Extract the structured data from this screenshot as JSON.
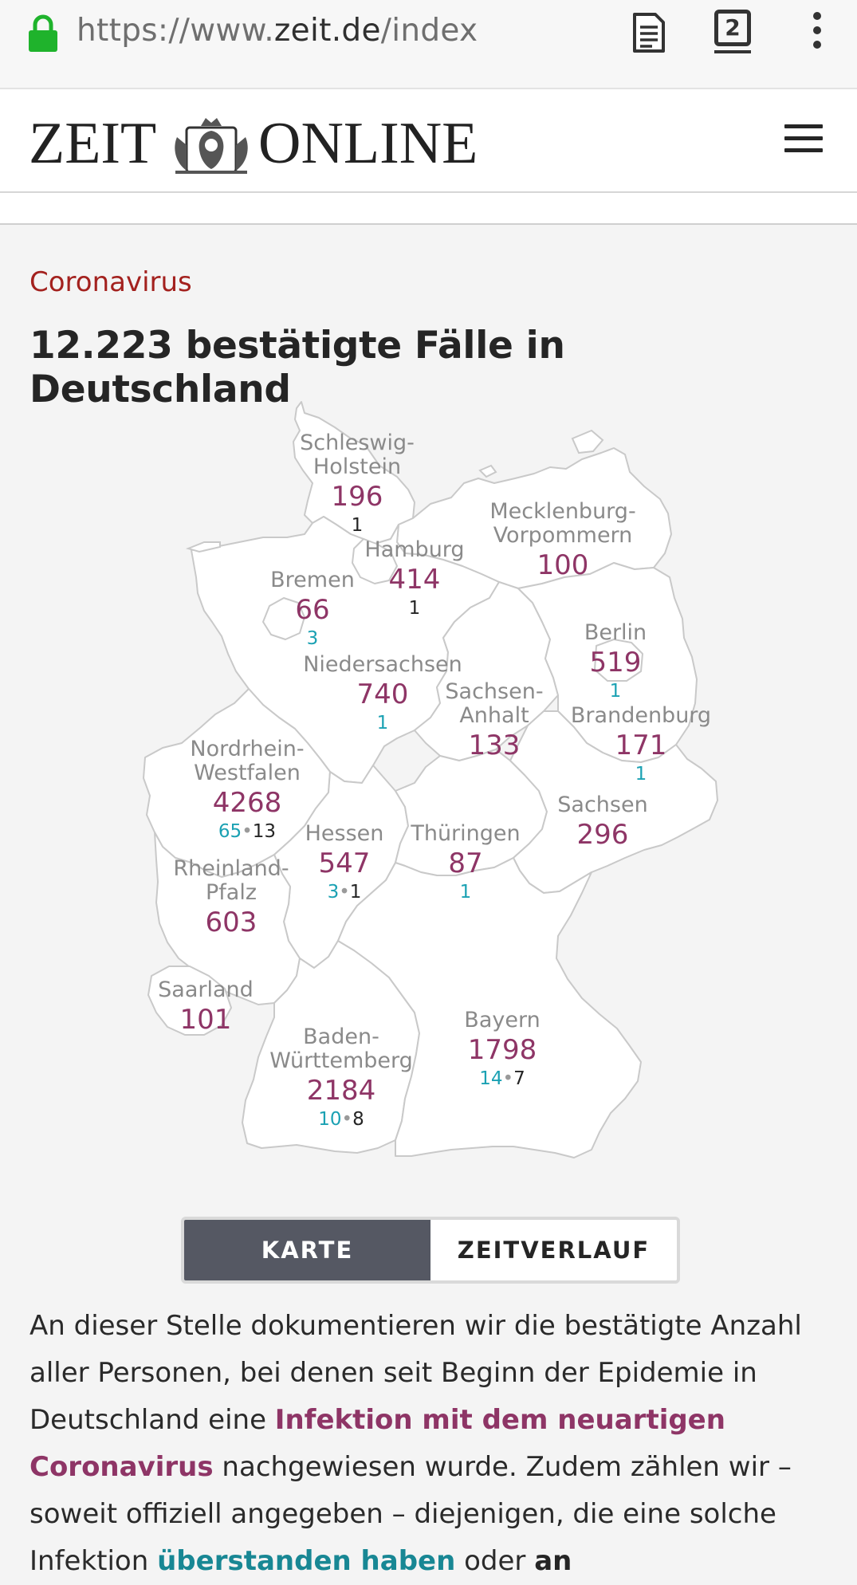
{
  "browser": {
    "url_scheme": "https://www.",
    "url_domain": "zeit.de",
    "url_path": "/index",
    "tab_count": "2",
    "icons": [
      "lock-icon",
      "reader-mode-icon",
      "tabs-icon",
      "overflow-menu-icon"
    ]
  },
  "header": {
    "logo_left": "ZEIT",
    "logo_right": "ONLINE",
    "icons": [
      "eagle-crest-icon",
      "hamburger-menu-icon"
    ]
  },
  "article": {
    "kicker": "Coronavirus",
    "headline": "12.223 bestätigte Fälle in Deutschland"
  },
  "map": {
    "states": [
      {
        "name_lines": [
          "Schleswig-",
          "Holstein"
        ],
        "count": "196",
        "recovered": "",
        "deaths": "1"
      },
      {
        "name_lines": [
          "Mecklenburg-",
          "Vorpommern"
        ],
        "count": "100",
        "recovered": "",
        "deaths": ""
      },
      {
        "name_lines": [
          "Hamburg"
        ],
        "count": "414",
        "recovered": "",
        "deaths": "1"
      },
      {
        "name_lines": [
          "Bremen"
        ],
        "count": "66",
        "recovered": "3",
        "deaths": ""
      },
      {
        "name_lines": [
          "Berlin"
        ],
        "count": "519",
        "recovered": "1",
        "deaths": ""
      },
      {
        "name_lines": [
          "Niedersachsen"
        ],
        "count": "740",
        "recovered": "1",
        "deaths": ""
      },
      {
        "name_lines": [
          "Sachsen-",
          "Anhalt"
        ],
        "count": "133",
        "recovered": "",
        "deaths": ""
      },
      {
        "name_lines": [
          "Brandenburg"
        ],
        "count": "171",
        "recovered": "1",
        "deaths": ""
      },
      {
        "name_lines": [
          "Nordrhein-",
          "Westfalen"
        ],
        "count": "4268",
        "recovered": "65",
        "deaths": "13"
      },
      {
        "name_lines": [
          "Sachsen"
        ],
        "count": "296",
        "recovered": "",
        "deaths": ""
      },
      {
        "name_lines": [
          "Hessen"
        ],
        "count": "547",
        "recovered": "3",
        "deaths": "1"
      },
      {
        "name_lines": [
          "Thüringen"
        ],
        "count": "87",
        "recovered": "1",
        "deaths": ""
      },
      {
        "name_lines": [
          "Rheinland-",
          "Pfalz"
        ],
        "count": "603",
        "recovered": "",
        "deaths": ""
      },
      {
        "name_lines": [
          "Saarland"
        ],
        "count": "101",
        "recovered": "",
        "deaths": ""
      },
      {
        "name_lines": [
          "Bayern"
        ],
        "count": "1798",
        "recovered": "14",
        "deaths": "7"
      },
      {
        "name_lines": [
          "Baden-",
          "Württemberg"
        ],
        "count": "2184",
        "recovered": "10",
        "deaths": "8"
      }
    ],
    "colors": {
      "count": "#8e3566",
      "recovered": "#1ba1b3",
      "deaths": "#252525",
      "name": "#8a8a8a"
    }
  },
  "view_toggle": {
    "active": "KARTE",
    "inactive": "ZEITVERLAUF"
  },
  "body": {
    "p1_a": "An dieser Stelle dokumentieren wir die bestätigte Anzahl aller Personen, bei denen seit Beginn der Epidemie in Deutschland eine ",
    "p1_link1": "Infektion mit dem neuartigen Coronavirus",
    "p1_b": " nachgewiesen wurde. Zudem zählen wir – soweit offiziell angegeben – diejenigen, die eine solche Infektion ",
    "p1_link2": "überstanden haben",
    "p1_c": " oder ",
    "p1_strong": "an"
  }
}
